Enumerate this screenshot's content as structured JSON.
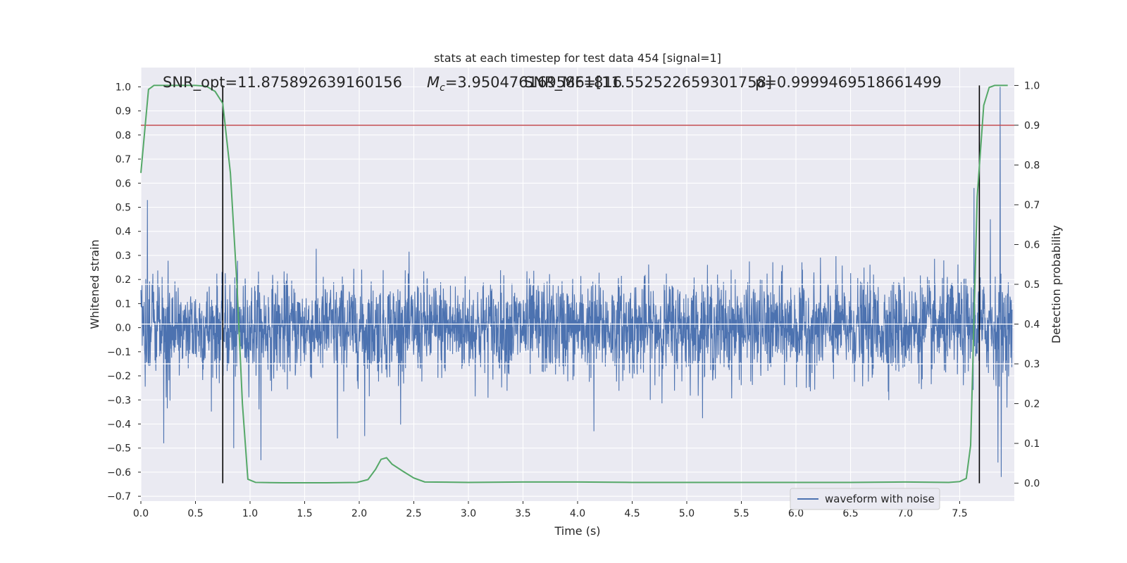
{
  "chart_data": {
    "type": "line",
    "title": "stats at each timestep for test data 454 [signal=1]",
    "xlabel": "Time (s)",
    "ylabel": "Whitened strain",
    "y2label": "Detection probability",
    "xlim": [
      0.0,
      8.0
    ],
    "ylim": [
      -0.72,
      1.08
    ],
    "y2lim": [
      -0.045,
      1.045
    ],
    "xticks": [
      "0.0",
      "0.5",
      "1.0",
      "1.5",
      "2.0",
      "2.5",
      "3.0",
      "3.5",
      "4.0",
      "4.5",
      "5.0",
      "5.5",
      "6.0",
      "6.5",
      "7.0",
      "7.5"
    ],
    "yticks": [
      "1.0",
      "0.9",
      "0.8",
      "0.7",
      "0.6",
      "0.5",
      "0.4",
      "0.3",
      "0.2",
      "0.1",
      "0.0",
      "−0.1",
      "−0.2",
      "−0.3",
      "−0.4",
      "−0.5",
      "−0.6",
      "−0.7"
    ],
    "y2ticks": [
      "1.0",
      "0.9",
      "0.8",
      "0.7",
      "0.6",
      "0.5",
      "0.4",
      "0.3",
      "0.2",
      "0.1",
      "0.0"
    ],
    "grid": true,
    "legend": {
      "position": "lower-right",
      "entries": [
        "waveform with noise"
      ]
    },
    "annotations": [
      "SNR_opt=11.875892639160156",
      "$M_c$=3.9504761695861816",
      "SNR_MF=[11.552522659301758]",
      "p=0.9999469518661499"
    ],
    "annotation_mc_symbol": "M",
    "annotation_mc_sub": "c",
    "annotation_mc_value": "=3.9504761695861816",
    "waveform": {
      "name": "waveform with noise",
      "color": "#4c72b0",
      "duration_s": 7.98,
      "noise_sigma": 0.1,
      "spikes": [
        {
          "x": 0.06,
          "y": 0.53
        },
        {
          "x": 0.21,
          "y": -0.48
        },
        {
          "x": 0.85,
          "y": -0.5
        },
        {
          "x": 1.1,
          "y": -0.55
        },
        {
          "x": 1.8,
          "y": -0.46
        },
        {
          "x": 2.05,
          "y": -0.45
        },
        {
          "x": 4.15,
          "y": -0.43
        },
        {
          "x": 7.63,
          "y": 0.58
        },
        {
          "x": 7.85,
          "y": -0.56
        },
        {
          "x": 7.87,
          "y": 1.0
        },
        {
          "x": 7.88,
          "y": -0.62
        },
        {
          "x": 7.78,
          "y": 0.45
        }
      ]
    },
    "probability": {
      "color": "#55a868",
      "points": [
        [
          0.0,
          0.78
        ],
        [
          0.07,
          0.99
        ],
        [
          0.12,
          1.0
        ],
        [
          0.5,
          1.0
        ],
        [
          0.6,
          0.998
        ],
        [
          0.68,
          0.985
        ],
        [
          0.75,
          0.955
        ],
        [
          0.82,
          0.78
        ],
        [
          0.88,
          0.5
        ],
        [
          0.93,
          0.2
        ],
        [
          0.98,
          0.01
        ],
        [
          1.05,
          0.002
        ],
        [
          1.3,
          0.001
        ],
        [
          1.7,
          0.001
        ],
        [
          1.98,
          0.002
        ],
        [
          2.08,
          0.009
        ],
        [
          2.15,
          0.035
        ],
        [
          2.2,
          0.06
        ],
        [
          2.25,
          0.064
        ],
        [
          2.3,
          0.048
        ],
        [
          2.4,
          0.03
        ],
        [
          2.5,
          0.013
        ],
        [
          2.6,
          0.003
        ],
        [
          3.0,
          0.002
        ],
        [
          3.5,
          0.003
        ],
        [
          4.0,
          0.003
        ],
        [
          4.5,
          0.002
        ],
        [
          5.0,
          0.002
        ],
        [
          5.5,
          0.002
        ],
        [
          6.0,
          0.002
        ],
        [
          6.5,
          0.002
        ],
        [
          7.0,
          0.003
        ],
        [
          7.4,
          0.002
        ],
        [
          7.5,
          0.004
        ],
        [
          7.56,
          0.012
        ],
        [
          7.6,
          0.095
        ],
        [
          7.62,
          0.3
        ],
        [
          7.66,
          0.72
        ],
        [
          7.72,
          0.95
        ],
        [
          7.77,
          0.995
        ],
        [
          7.82,
          1.0
        ],
        [
          7.94,
          1.0
        ]
      ]
    },
    "threshold": {
      "y2": 0.9,
      "color": "#c44e52"
    },
    "vlines": [
      {
        "x": 0.75,
        "color": "#000000"
      },
      {
        "x": 7.68,
        "color": "#000000"
      }
    ]
  }
}
